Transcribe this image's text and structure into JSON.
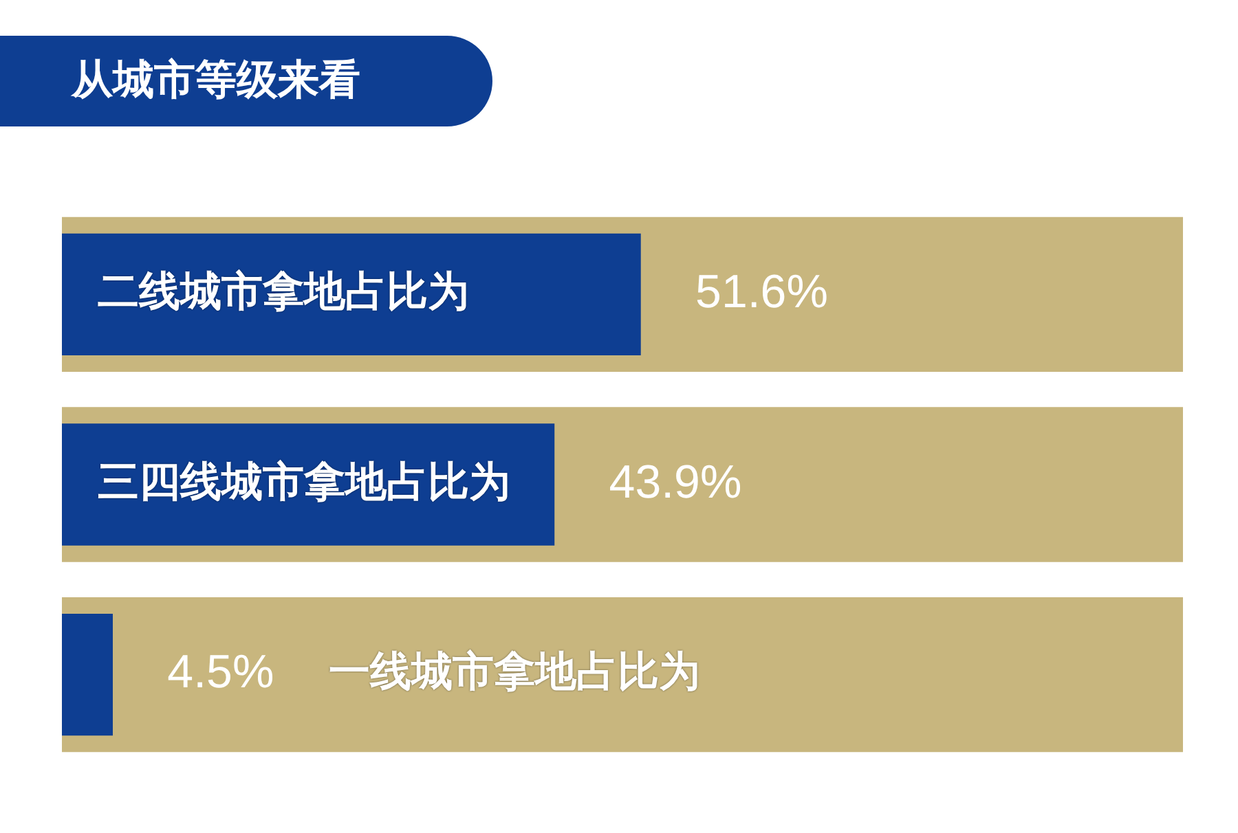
{
  "chart_data": {
    "type": "bar",
    "orientation": "horizontal",
    "title": "从城市等级来看",
    "categories": [
      "二线城市拿地占比为",
      "三四线城市拿地占比为",
      "一线城市拿地占比为"
    ],
    "series": [
      {
        "color": "#c8b67e",
        "values": [
          100,
          100,
          100
        ]
      },
      {
        "color": "#0e3e92",
        "values": [
          51.6,
          43.9,
          4.5
        ],
        "value_labels": [
          "51.6%",
          "43.9%",
          "4.5%"
        ]
      }
    ],
    "tick_labels": false,
    "legend": false
  }
}
